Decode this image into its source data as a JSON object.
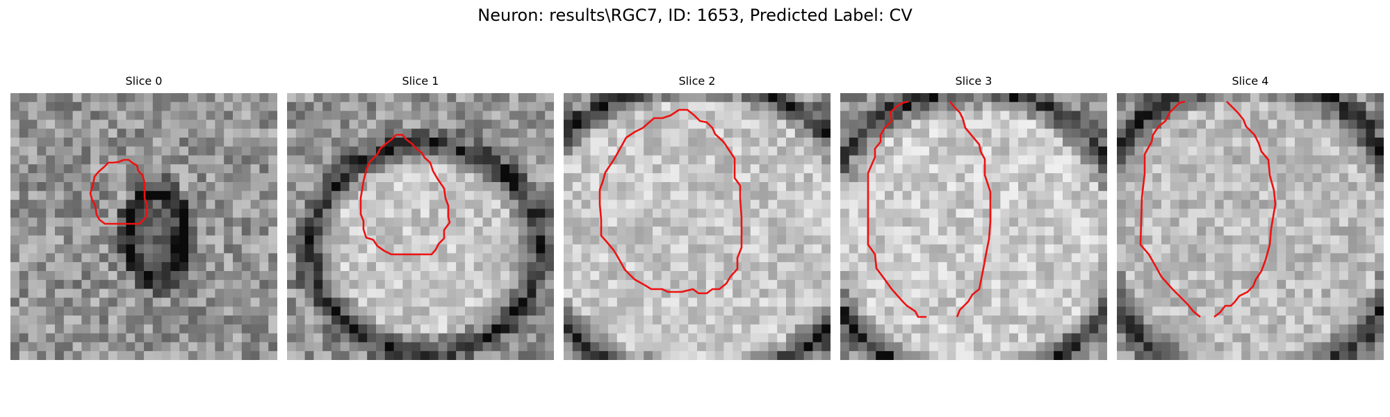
{
  "figure": {
    "title": "Neuron: results\\RGC7, ID: 1653, Predicted Label: CV",
    "outline_color": "#ee1111"
  },
  "panels": [
    {
      "title": "Slice 0"
    },
    {
      "title": "Slice 1"
    },
    {
      "title": "Slice 2"
    },
    {
      "title": "Slice 3"
    },
    {
      "title": "Slice 4"
    }
  ]
}
